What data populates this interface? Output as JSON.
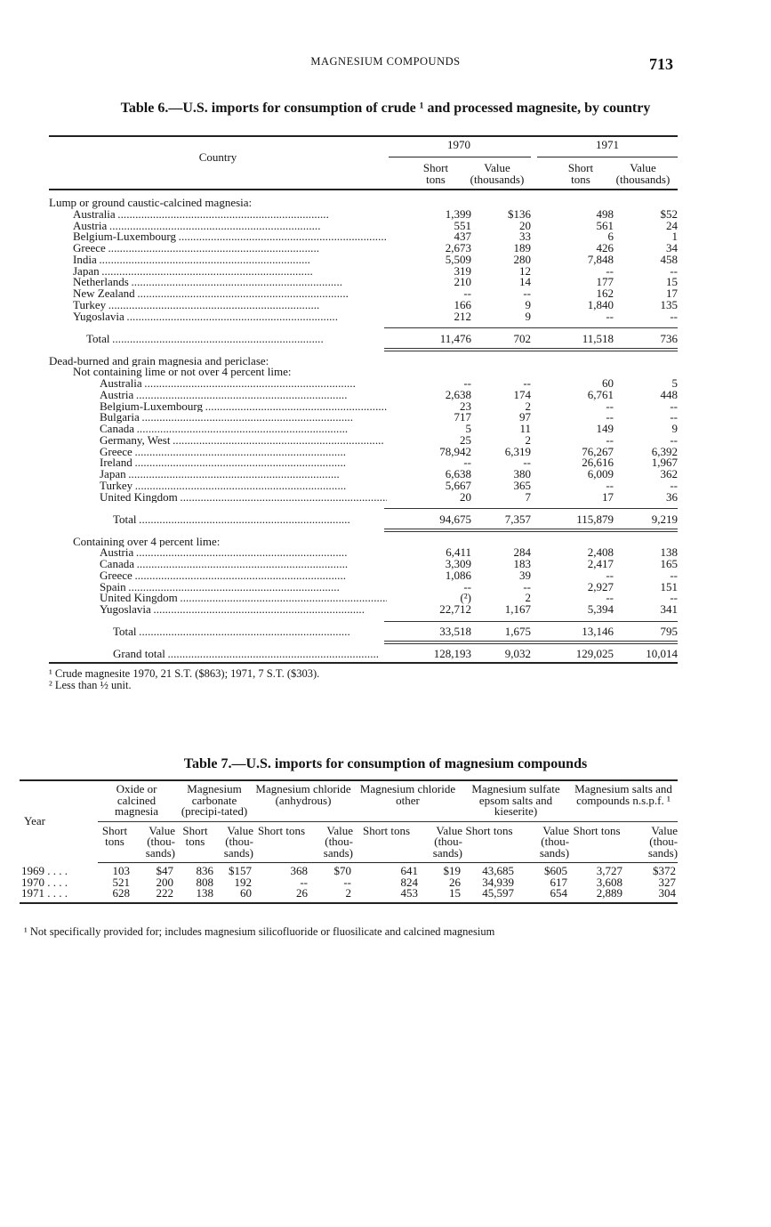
{
  "running_head": "MAGNESIUM COMPOUNDS",
  "page_number": "713",
  "table6": {
    "title": "Table 6.—U.S. imports for consumption of crude ¹ and processed magnesite, by country",
    "header": {
      "country": "Country",
      "year1": "1970",
      "year2": "1971",
      "short_tons": "Short tons",
      "value": "Value (thousands)"
    },
    "sections": [
      {
        "heading": "Lump or ground caustic-calcined magnesia:",
        "subheading": null,
        "rows": [
          {
            "country": "Australia",
            "s70": "1,399",
            "v70": "$136",
            "s71": "498",
            "v71": "$52"
          },
          {
            "country": "Austria",
            "s70": "551",
            "v70": "20",
            "s71": "561",
            "v71": "24"
          },
          {
            "country": "Belgium-Luxembourg",
            "s70": "437",
            "v70": "33",
            "s71": "6",
            "v71": "1"
          },
          {
            "country": "Greece",
            "s70": "2,673",
            "v70": "189",
            "s71": "426",
            "v71": "34"
          },
          {
            "country": "India",
            "s70": "5,509",
            "v70": "280",
            "s71": "7,848",
            "v71": "458"
          },
          {
            "country": "Japan",
            "s70": "319",
            "v70": "12",
            "s71": "--",
            "v71": "--"
          },
          {
            "country": "Netherlands",
            "s70": "210",
            "v70": "14",
            "s71": "177",
            "v71": "15"
          },
          {
            "country": "New Zealand",
            "s70": "--",
            "v70": "--",
            "s71": "162",
            "v71": "17"
          },
          {
            "country": "Turkey",
            "s70": "166",
            "v70": "9",
            "s71": "1,840",
            "v71": "135"
          },
          {
            "country": "Yugoslavia",
            "s70": "212",
            "v70": "9",
            "s71": "--",
            "v71": "--"
          }
        ],
        "total": {
          "country": "Total",
          "s70": "11,476",
          "v70": "702",
          "s71": "11,518",
          "v71": "736"
        }
      },
      {
        "heading": "Dead-burned and grain magnesia and periclase:",
        "subheading": "Not containing lime or not over 4 percent lime:",
        "rows": [
          {
            "country": "Australia",
            "s70": "--",
            "v70": "--",
            "s71": "60",
            "v71": "5"
          },
          {
            "country": "Austria",
            "s70": "2,638",
            "v70": "174",
            "s71": "6,761",
            "v71": "448"
          },
          {
            "country": "Belgium-Luxembourg",
            "s70": "23",
            "v70": "2",
            "s71": "--",
            "v71": "--"
          },
          {
            "country": "Bulgaria",
            "s70": "717",
            "v70": "97",
            "s71": "--",
            "v71": "--"
          },
          {
            "country": "Canada",
            "s70": "5",
            "v70": "11",
            "s71": "149",
            "v71": "9"
          },
          {
            "country": "Germany, West",
            "s70": "25",
            "v70": "2",
            "s71": "--",
            "v71": "--"
          },
          {
            "country": "Greece",
            "s70": "78,942",
            "v70": "6,319",
            "s71": "76,267",
            "v71": "6,392"
          },
          {
            "country": "Ireland",
            "s70": "--",
            "v70": "--",
            "s71": "26,616",
            "v71": "1,967"
          },
          {
            "country": "Japan",
            "s70": "6,638",
            "v70": "380",
            "s71": "6,009",
            "v71": "362"
          },
          {
            "country": "Turkey",
            "s70": "5,667",
            "v70": "365",
            "s71": "--",
            "v71": "--"
          },
          {
            "country": "United Kingdom",
            "s70": "20",
            "v70": "7",
            "s71": "17",
            "v71": "36"
          }
        ],
        "total": {
          "country": "Total",
          "s70": "94,675",
          "v70": "7,357",
          "s71": "115,879",
          "v71": "9,219"
        }
      },
      {
        "heading": null,
        "subheading": "Containing over 4 percent lime:",
        "rows": [
          {
            "country": "Austria",
            "s70": "6,411",
            "v70": "284",
            "s71": "2,408",
            "v71": "138"
          },
          {
            "country": "Canada",
            "s70": "3,309",
            "v70": "183",
            "s71": "2,417",
            "v71": "165"
          },
          {
            "country": "Greece",
            "s70": "1,086",
            "v70": "39",
            "s71": "--",
            "v71": "--"
          },
          {
            "country": "Spain",
            "s70": "--",
            "v70": "--",
            "s71": "2,927",
            "v71": "151"
          },
          {
            "country": "United Kingdom",
            "s70": "(²)",
            "v70": "2",
            "s71": "--",
            "v71": "--"
          },
          {
            "country": "Yugoslavia",
            "s70": "22,712",
            "v70": "1,167",
            "s71": "5,394",
            "v71": "341"
          }
        ],
        "total": {
          "country": "Total",
          "s70": "33,518",
          "v70": "1,675",
          "s71": "13,146",
          "v71": "795"
        }
      }
    ],
    "grand_total": {
      "country": "Grand total",
      "s70": "128,193",
      "v70": "9,032",
      "s71": "129,025",
      "v71": "10,014"
    },
    "footnotes": [
      "¹ Crude magnesite 1970, 21 S.T. ($863); 1971, 7 S.T. ($303).",
      "² Less than ½ unit."
    ]
  },
  "table7": {
    "title": "Table 7.—U.S. imports for consumption of magnesium compounds",
    "year_header": "Year",
    "groups": [
      "Oxide or calcined magnesia",
      "Magnesium carbonate (precipi-tated)",
      "Magnesium chloride (anhydrous)",
      "Magnesium chloride other",
      "Magnesium sulfate epsom salts and kieserite)",
      "Magnesium salts and compounds n.s.p.f. ¹"
    ],
    "sub_short": "Short tons",
    "sub_value": "Value (thou-sands)",
    "rows": [
      {
        "year": "1969",
        "values": [
          "103",
          "$47",
          "836",
          "$157",
          "368",
          "$70",
          "641",
          "$19",
          "43,685",
          "$605",
          "3,727",
          "$372"
        ]
      },
      {
        "year": "1970",
        "values": [
          "521",
          "200",
          "808",
          "192",
          "--",
          "--",
          "824",
          "26",
          "34,939",
          "617",
          "3,608",
          "327"
        ]
      },
      {
        "year": "1971",
        "values": [
          "628",
          "222",
          "138",
          "60",
          "26",
          "2",
          "453",
          "15",
          "45,597",
          "654",
          "2,889",
          "304"
        ]
      }
    ],
    "footnote": "¹ Not specifically provided for; includes magnesium silicofluoride or fluosilicate and calcined magnesium"
  }
}
